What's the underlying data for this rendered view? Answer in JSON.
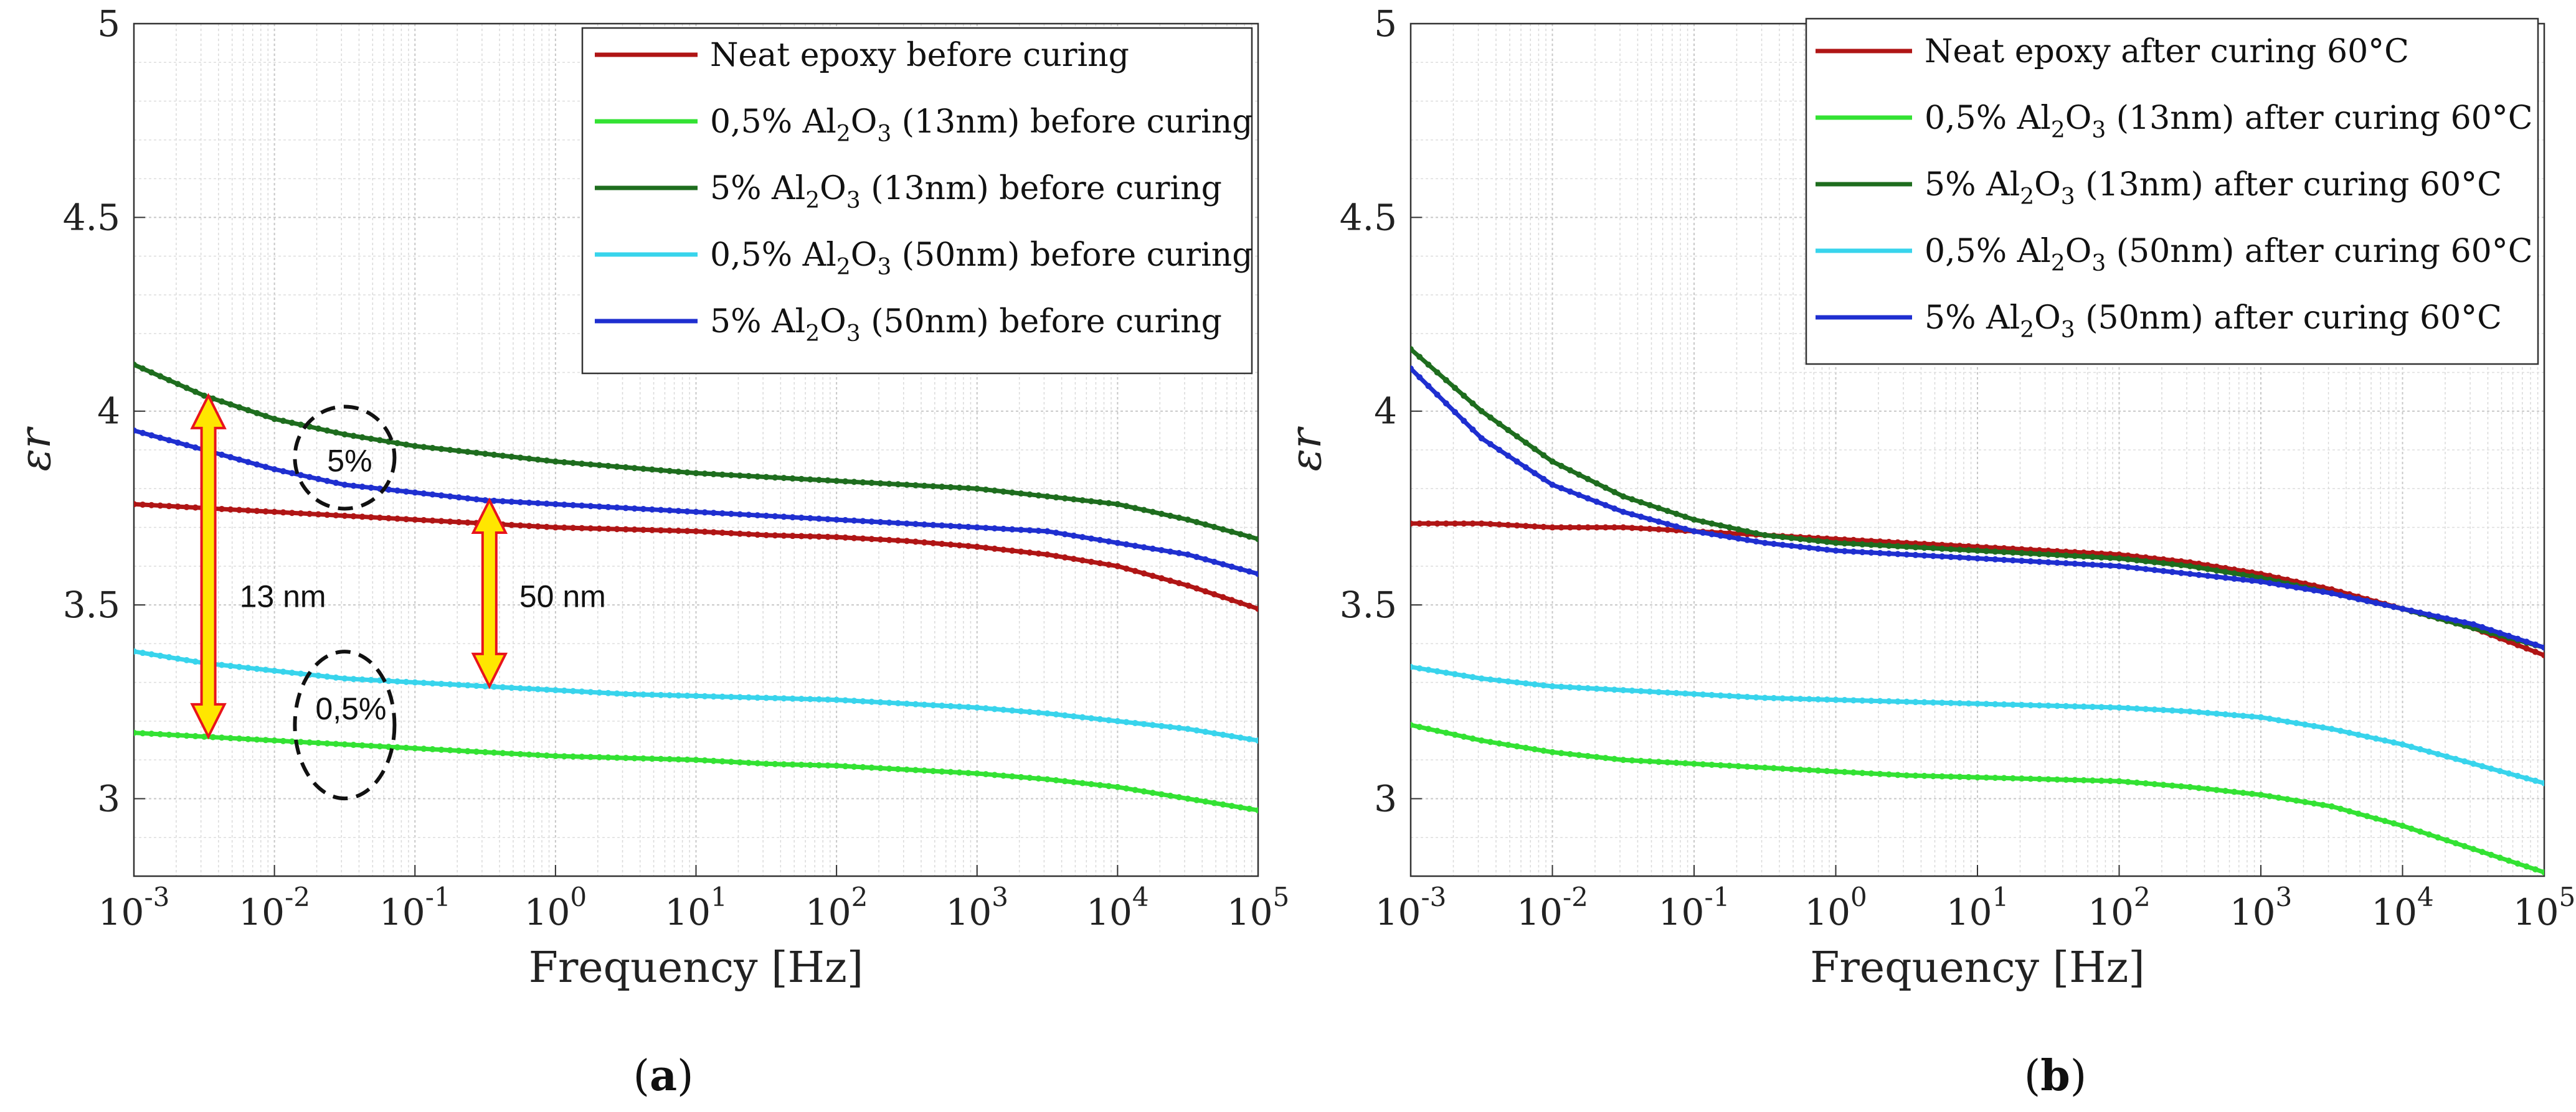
{
  "chart_data": [
    {
      "type": "line",
      "panel_label": "a",
      "xscale": "log",
      "xlabel": "Frequency [Hz]",
      "ylabel": "εr",
      "xlim_exp": [
        -3,
        5
      ],
      "ylim": [
        2.8,
        5.0
      ],
      "x_tick_exponents": [
        "-3",
        "-2",
        "-1",
        "0",
        "1",
        "2",
        "3",
        "4",
        "5"
      ],
      "y_ticks": [
        "3",
        "3.5",
        "4",
        "4.5",
        "5"
      ],
      "grid": true,
      "legend_position": "top-right",
      "x_log": [
        -3,
        -2.5,
        -2,
        -1.5,
        -1,
        -0.5,
        0,
        0.5,
        1,
        1.5,
        2,
        2.5,
        3,
        3.5,
        4,
        4.5,
        5
      ],
      "series": [
        {
          "name": "Neat epoxy before curing",
          "prefix": "Neat epoxy before curing",
          "suffix": "",
          "formula": false,
          "color": "#b01515",
          "values": [
            3.76,
            3.75,
            3.74,
            3.73,
            3.72,
            3.71,
            3.7,
            3.695,
            3.69,
            3.68,
            3.675,
            3.665,
            3.65,
            3.63,
            3.6,
            3.55,
            3.49
          ]
        },
        {
          "name": "0,5% Al2O3 (13nm) before curing",
          "prefix": "0,5% Al",
          "suffix": " (13nm) before curing",
          "formula": true,
          "color": "#33e233",
          "values": [
            3.17,
            3.16,
            3.15,
            3.14,
            3.13,
            3.12,
            3.11,
            3.105,
            3.1,
            3.09,
            3.085,
            3.075,
            3.065,
            3.05,
            3.03,
            3.0,
            2.97
          ]
        },
        {
          "name": "5% Al2O3 (13nm) before curing",
          "prefix": "5% Al",
          "suffix": " (13nm) before curing",
          "formula": true,
          "color": "#1e6d1e",
          "values": [
            4.12,
            4.04,
            3.98,
            3.94,
            3.91,
            3.89,
            3.87,
            3.855,
            3.84,
            3.83,
            3.82,
            3.81,
            3.8,
            3.78,
            3.76,
            3.72,
            3.67
          ]
        },
        {
          "name": "0,5% Al2O3 (50nm) before curing",
          "prefix": "0,5% Al",
          "suffix": " (50nm) before curing",
          "formula": true,
          "color": "#38d4ec",
          "values": [
            3.38,
            3.35,
            3.33,
            3.31,
            3.3,
            3.29,
            3.28,
            3.27,
            3.265,
            3.26,
            3.255,
            3.245,
            3.235,
            3.22,
            3.2,
            3.18,
            3.15
          ]
        },
        {
          "name": "5% Al2O3 (50nm) before curing",
          "prefix": "5% Al",
          "suffix": " (50nm) before curing",
          "formula": true,
          "color": "#1f2fd0",
          "values": [
            3.95,
            3.9,
            3.85,
            3.81,
            3.79,
            3.77,
            3.76,
            3.75,
            3.74,
            3.73,
            3.72,
            3.71,
            3.7,
            3.69,
            3.66,
            3.63,
            3.58
          ]
        }
      ],
      "annotations": {
        "arrow_13nm_label": "13 nm",
        "arrow_50nm_label": "50 nm",
        "circle_5_label": "5%",
        "circle_05_label": "0,5%"
      }
    },
    {
      "type": "line",
      "panel_label": "b",
      "xscale": "log",
      "xlabel": "Frequency [Hz]",
      "ylabel": "εr",
      "xlim_exp": [
        -3,
        5
      ],
      "ylim": [
        2.8,
        5.0
      ],
      "x_tick_exponents": [
        "-3",
        "-2",
        "-1",
        "0",
        "1",
        "2",
        "3",
        "4",
        "5"
      ],
      "y_ticks": [
        "3",
        "3.5",
        "4",
        "4.5",
        "5"
      ],
      "grid": true,
      "legend_position": "top-right",
      "x_log": [
        -3,
        -2.5,
        -2,
        -1.5,
        -1,
        -0.5,
        0,
        0.5,
        1,
        1.5,
        2,
        2.5,
        3,
        3.5,
        4,
        4.5,
        5
      ],
      "series": [
        {
          "name": "Neat epoxy after curing 60°C",
          "prefix": "Neat epoxy after curing 60°C",
          "suffix": "",
          "formula": false,
          "color": "#b01515",
          "values": [
            3.71,
            3.71,
            3.7,
            3.7,
            3.69,
            3.68,
            3.67,
            3.66,
            3.65,
            3.64,
            3.63,
            3.61,
            3.58,
            3.54,
            3.49,
            3.44,
            3.37
          ]
        },
        {
          "name": "0,5% Al2O3 (13nm) after curing 60°C",
          "prefix": "0,5% Al",
          "suffix": " (13nm) after curing 60°C",
          "formula": true,
          "color": "#33e233",
          "values": [
            3.19,
            3.15,
            3.12,
            3.1,
            3.09,
            3.08,
            3.07,
            3.06,
            3.055,
            3.05,
            3.045,
            3.03,
            3.01,
            2.98,
            2.93,
            2.87,
            2.81
          ]
        },
        {
          "name": "5% Al2O3 (13nm) after curing 60°C",
          "prefix": "5% Al",
          "suffix": " (13nm) after curing 60°C",
          "formula": true,
          "color": "#1e6d1e",
          "values": [
            4.16,
            4.0,
            3.87,
            3.78,
            3.72,
            3.68,
            3.66,
            3.65,
            3.64,
            3.63,
            3.62,
            3.6,
            3.57,
            3.53,
            3.49,
            3.44,
            3.39
          ]
        },
        {
          "name": "0,5% Al2O3 (50nm) after curing 60°C",
          "prefix": "0,5% Al",
          "suffix": " (50nm) after curing 60°C",
          "formula": true,
          "color": "#38d4ec",
          "values": [
            3.34,
            3.31,
            3.29,
            3.28,
            3.27,
            3.26,
            3.255,
            3.25,
            3.245,
            3.24,
            3.235,
            3.225,
            3.21,
            3.18,
            3.14,
            3.09,
            3.04
          ]
        },
        {
          "name": "5% Al2O3 (50nm) after curing 60°C",
          "prefix": "5% Al",
          "suffix": " (50nm) after curing 60°C",
          "formula": true,
          "color": "#1f2fd0",
          "values": [
            4.11,
            3.93,
            3.81,
            3.74,
            3.69,
            3.66,
            3.64,
            3.63,
            3.62,
            3.61,
            3.6,
            3.58,
            3.56,
            3.53,
            3.49,
            3.45,
            3.39
          ]
        }
      ]
    }
  ]
}
